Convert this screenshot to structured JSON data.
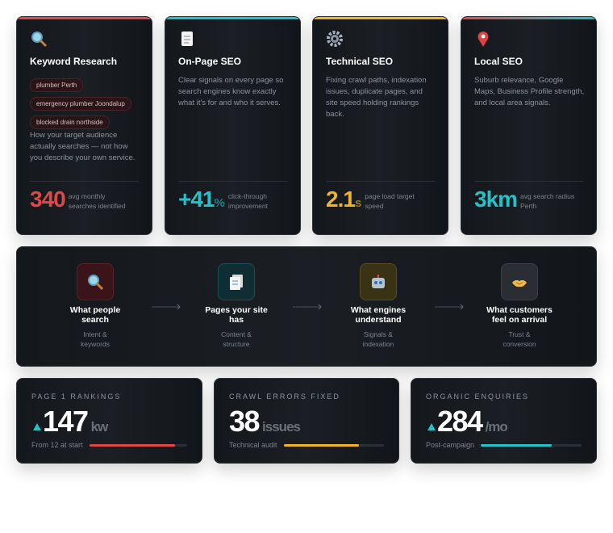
{
  "cards": [
    {
      "title": "Keyword Research",
      "tags": [
        "plumber Perth",
        "emergency plumber Joondalup",
        "blocked drain northside"
      ],
      "description": "How your target audience actually searches — not how you describe your own service.",
      "stat": 340,
      "caption": "avg monthly searches identified"
    },
    {
      "title": "On-Page SEO",
      "description": "Clear signals on every page so search engines know exactly what it's for and who it serves.",
      "stat": "+41",
      "unit": "%",
      "caption": "click-through improvement"
    },
    {
      "title": "Technical SEO",
      "description": "Fixing crawl paths, indexation issues, duplicate pages, and site speed holding rankings back.",
      "stat": 2.1,
      "unit": "s",
      "caption": "page load target speed"
    },
    {
      "title": "Local SEO",
      "description": "Suburb relevance, Google Maps, Business Profile strength, and local area signals.",
      "stat": "3km",
      "caption": "avg search radius Perth"
    }
  ],
  "flow": [
    {
      "title": "What people search",
      "subtitle": "Intent & keywords"
    },
    {
      "title": "Pages your site has",
      "subtitle": "Content & structure"
    },
    {
      "title": "What engines understand",
      "subtitle": "Signals & indexation"
    },
    {
      "title": "What customers feel on arrival",
      "subtitle": "Trust & conversion"
    }
  ],
  "stats": [
    {
      "label": "PAGE 1 RANKINGS",
      "value": 147,
      "unit": "kw",
      "caption": "From 12 at start"
    },
    {
      "label": "CRAWL ERRORS FIXED",
      "value": 38,
      "unit": "issues",
      "caption": "Technical audit"
    },
    {
      "label": "ORGANIC ENQUIRIES",
      "value": 284,
      "unit": "/mo",
      "caption": "Post-campaign"
    }
  ]
}
